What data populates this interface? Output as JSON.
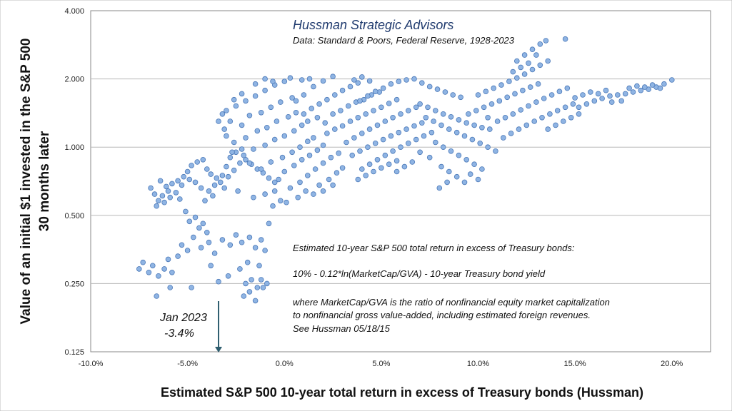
{
  "chart_data": {
    "type": "scatter",
    "title": "Hussman Strategic Advisors",
    "subtitle": "Data: Standard & Poors, Federal Reserve, 1928-2023",
    "xlabel": "Estimated S&P 500 10-year total return in excess of Treasury bonds (Hussman)",
    "ylabel_line1": "Value of an initial $1 invested in the S&P 500",
    "ylabel_line2": "30 months later",
    "xlim": [
      -10,
      22
    ],
    "ylim": [
      0.125,
      4
    ],
    "y_scale": "log2",
    "grid": "horizontal",
    "x_ticks": [
      {
        "value": -10,
        "label": "-10.0%"
      },
      {
        "value": -5,
        "label": "-5.0%"
      },
      {
        "value": 0,
        "label": "0.0%"
      },
      {
        "value": 5,
        "label": "5.0%"
      },
      {
        "value": 10,
        "label": "10.0%"
      },
      {
        "value": 15,
        "label": "15.0%"
      },
      {
        "value": 20,
        "label": "20.0%"
      }
    ],
    "y_ticks": [
      {
        "value": 0.125,
        "label": "0.125"
      },
      {
        "value": 0.25,
        "label": "0.250"
      },
      {
        "value": 0.5,
        "label": "0.500"
      },
      {
        "value": 1,
        "label": "1.000"
      },
      {
        "value": 2,
        "label": "2.000"
      },
      {
        "value": 4,
        "label": "4.000"
      }
    ],
    "notes": [
      "Estimated 10-year S&P 500 total return in excess of Treasury bonds:",
      "10% - 0.12*ln(MarketCap/GVA) - 10-year Treasury bond yield",
      "where MarketCap/GVA is the ratio of nonfinancial equity market capitalization",
      "to nonfinancial gross value-added, including estimated foreign revenues.",
      "See Hussman 05/18/15"
    ],
    "annotation": {
      "line1": "Jan 2023",
      "line2": "-3.4%",
      "x": -3.4
    },
    "marker_color": "#8fb4e3",
    "marker_edge": "#4a78b8",
    "arrow_color": "#2e5d6e",
    "points": [
      [
        -6.9,
        0.66
      ],
      [
        -6.7,
        0.62
      ],
      [
        -6.5,
        0.58
      ],
      [
        -6.3,
        0.61
      ],
      [
        -6.0,
        0.64
      ],
      [
        -5.8,
        0.69
      ],
      [
        -5.5,
        0.71
      ],
      [
        -5.2,
        0.74
      ],
      [
        -5.0,
        0.78
      ],
      [
        -4.8,
        0.83
      ],
      [
        -4.5,
        0.86
      ],
      [
        -4.2,
        0.88
      ],
      [
        -4.0,
        0.8
      ],
      [
        -3.8,
        0.76
      ],
      [
        -3.5,
        0.73
      ],
      [
        -3.2,
        0.75
      ],
      [
        -3.0,
        0.82
      ],
      [
        -2.8,
        0.9
      ],
      [
        -2.5,
        0.95
      ],
      [
        -2.2,
        0.98
      ],
      [
        -6.6,
        0.55
      ],
      [
        -6.2,
        0.57
      ],
      [
        -5.9,
        0.6
      ],
      [
        -5.6,
        0.63
      ],
      [
        -5.3,
        0.68
      ],
      [
        -4.9,
        0.72
      ],
      [
        -4.6,
        0.7
      ],
      [
        -4.3,
        0.66
      ],
      [
        -3.9,
        0.64
      ],
      [
        -3.6,
        0.68
      ],
      [
        -3.3,
        0.7
      ],
      [
        -2.9,
        0.74
      ],
      [
        -2.6,
        0.79
      ],
      [
        -2.3,
        0.85
      ],
      [
        -2.0,
        0.88
      ],
      [
        -1.7,
        0.84
      ],
      [
        -1.4,
        0.8
      ],
      [
        -1.1,
        0.77
      ],
      [
        -0.8,
        0.73
      ],
      [
        -0.5,
        0.7
      ],
      [
        -5.1,
        0.52
      ],
      [
        -4.9,
        0.47
      ],
      [
        -4.6,
        0.49
      ],
      [
        -4.4,
        0.44
      ],
      [
        -4.2,
        0.46
      ],
      [
        -4.0,
        0.42
      ],
      [
        -4.7,
        0.4
      ],
      [
        -5.3,
        0.37
      ],
      [
        -5.0,
        0.35
      ],
      [
        -4.3,
        0.36
      ],
      [
        -3.9,
        0.38
      ],
      [
        -3.6,
        0.34
      ],
      [
        -3.2,
        0.39
      ],
      [
        -2.8,
        0.37
      ],
      [
        -2.5,
        0.41
      ],
      [
        -2.2,
        0.38
      ],
      [
        -1.8,
        0.4
      ],
      [
        -1.5,
        0.36
      ],
      [
        -1.2,
        0.39
      ],
      [
        -1.0,
        0.35
      ],
      [
        -7.5,
        0.29
      ],
      [
        -7.3,
        0.31
      ],
      [
        -7.0,
        0.28
      ],
      [
        -6.8,
        0.3
      ],
      [
        -6.5,
        0.27
      ],
      [
        -6.2,
        0.29
      ],
      [
        -6.0,
        0.32
      ],
      [
        -5.8,
        0.28
      ],
      [
        -5.5,
        0.33
      ],
      [
        -6.6,
        0.22
      ],
      [
        -5.9,
        0.24
      ],
      [
        -4.8,
        0.24
      ],
      [
        -3.8,
        0.3
      ],
      [
        -2.9,
        0.27
      ],
      [
        -2.3,
        0.29
      ],
      [
        -2.0,
        0.25
      ],
      [
        -1.7,
        0.26
      ],
      [
        -1.4,
        0.24
      ],
      [
        -1.2,
        0.26
      ],
      [
        -0.9,
        0.25
      ],
      [
        -3.4,
        0.255
      ],
      [
        -2.1,
        0.22
      ],
      [
        -1.8,
        0.23
      ],
      [
        -1.5,
        0.21
      ],
      [
        -1.1,
        0.24
      ],
      [
        -1.9,
        0.31
      ],
      [
        -1.3,
        0.3
      ],
      [
        -0.8,
        0.46
      ],
      [
        -0.2,
        0.58
      ],
      [
        -0.6,
        0.55
      ],
      [
        0.1,
        0.57
      ],
      [
        -1.0,
        0.62
      ],
      [
        -1.6,
        0.6
      ],
      [
        -2.4,
        0.64
      ],
      [
        -3.1,
        0.66
      ],
      [
        -3.7,
        0.61
      ],
      [
        -4.1,
        0.58
      ],
      [
        -5.4,
        0.59
      ],
      [
        -6.1,
        0.67
      ],
      [
        -6.4,
        0.71
      ],
      [
        -3.0,
        1.45
      ],
      [
        -2.5,
        1.52
      ],
      [
        -2.0,
        1.6
      ],
      [
        -1.5,
        1.68
      ],
      [
        -1.0,
        1.78
      ],
      [
        -0.5,
        1.88
      ],
      [
        0.0,
        1.95
      ],
      [
        0.3,
        2.02
      ],
      [
        -2.8,
        1.3
      ],
      [
        -2.2,
        1.25
      ],
      [
        -1.8,
        1.38
      ],
      [
        -1.2,
        1.42
      ],
      [
        -0.7,
        1.5
      ],
      [
        -0.2,
        1.58
      ],
      [
        0.4,
        1.65
      ],
      [
        -3.0,
        1.12
      ],
      [
        -2.6,
        1.05
      ],
      [
        -2.0,
        1.1
      ],
      [
        -1.4,
        1.18
      ],
      [
        -0.9,
        1.22
      ],
      [
        -0.4,
        1.3
      ],
      [
        0.2,
        1.36
      ],
      [
        0.6,
        1.42
      ],
      [
        -2.7,
        0.95
      ],
      [
        -2.1,
        0.92
      ],
      [
        -1.6,
        0.98
      ],
      [
        -1.0,
        1.02
      ],
      [
        -0.5,
        1.08
      ],
      [
        0.0,
        1.12
      ],
      [
        0.5,
        1.18
      ],
      [
        0.9,
        1.25
      ],
      [
        -1.8,
        0.85
      ],
      [
        -1.2,
        0.8
      ],
      [
        -0.7,
        0.86
      ],
      [
        -0.1,
        0.9
      ],
      [
        0.4,
        0.95
      ],
      [
        0.8,
        1.0
      ],
      [
        1.2,
        1.06
      ],
      [
        1.5,
        1.1
      ],
      [
        -0.3,
        0.72
      ],
      [
        0.0,
        0.78
      ],
      [
        0.5,
        0.83
      ],
      [
        0.9,
        0.88
      ],
      [
        1.3,
        0.92
      ],
      [
        1.7,
        0.97
      ],
      [
        2.0,
        1.02
      ],
      [
        0.3,
        0.66
      ],
      [
        0.8,
        0.7
      ],
      [
        1.2,
        0.75
      ],
      [
        1.6,
        0.8
      ],
      [
        2.0,
        0.85
      ],
      [
        2.4,
        0.9
      ],
      [
        2.8,
        0.94
      ],
      [
        1.8,
        0.68
      ],
      [
        2.3,
        0.72
      ],
      [
        2.7,
        0.77
      ],
      [
        3.0,
        0.81
      ],
      [
        1.0,
        1.4
      ],
      [
        1.4,
        1.48
      ],
      [
        1.8,
        1.55
      ],
      [
        2.2,
        1.62
      ],
      [
        2.6,
        1.7
      ],
      [
        3.0,
        1.78
      ],
      [
        3.4,
        1.85
      ],
      [
        3.8,
        1.92
      ],
      [
        2.0,
        1.96
      ],
      [
        2.5,
        2.05
      ],
      [
        1.5,
        1.85
      ],
      [
        1.0,
        1.7
      ],
      [
        0.6,
        1.6
      ],
      [
        1.2,
        1.3
      ],
      [
        1.7,
        1.35
      ],
      [
        2.1,
        1.28
      ],
      [
        2.5,
        1.4
      ],
      [
        2.9,
        1.45
      ],
      [
        3.3,
        1.52
      ],
      [
        3.7,
        1.58
      ],
      [
        4.1,
        1.62
      ],
      [
        4.5,
        1.7
      ],
      [
        4.9,
        1.75
      ],
      [
        2.2,
        1.15
      ],
      [
        2.6,
        1.2
      ],
      [
        3.0,
        1.24
      ],
      [
        3.4,
        1.3
      ],
      [
        3.8,
        1.35
      ],
      [
        4.2,
        1.4
      ],
      [
        4.6,
        1.45
      ],
      [
        5.0,
        1.5
      ],
      [
        5.4,
        1.56
      ],
      [
        5.8,
        1.62
      ],
      [
        3.2,
        1.05
      ],
      [
        3.6,
        1.1
      ],
      [
        4.0,
        1.15
      ],
      [
        4.4,
        1.2
      ],
      [
        4.8,
        1.25
      ],
      [
        5.2,
        1.3
      ],
      [
        5.6,
        1.35
      ],
      [
        6.0,
        1.4
      ],
      [
        6.4,
        1.45
      ],
      [
        6.8,
        1.5
      ],
      [
        3.5,
        0.92
      ],
      [
        3.9,
        0.96
      ],
      [
        4.3,
        1.0
      ],
      [
        4.7,
        1.04
      ],
      [
        5.1,
        1.08
      ],
      [
        5.5,
        1.12
      ],
      [
        5.9,
        1.16
      ],
      [
        6.3,
        1.2
      ],
      [
        6.7,
        1.24
      ],
      [
        7.1,
        1.28
      ],
      [
        4.0,
        0.8
      ],
      [
        4.4,
        0.84
      ],
      [
        4.8,
        0.88
      ],
      [
        5.2,
        0.92
      ],
      [
        5.6,
        0.96
      ],
      [
        6.0,
        1.0
      ],
      [
        6.4,
        1.04
      ],
      [
        6.8,
        1.08
      ],
      [
        7.2,
        1.12
      ],
      [
        7.6,
        1.16
      ],
      [
        3.8,
        0.72
      ],
      [
        4.2,
        0.75
      ],
      [
        4.6,
        0.78
      ],
      [
        5.0,
        0.81
      ],
      [
        5.4,
        0.84
      ],
      [
        5.8,
        0.87
      ],
      [
        3.9,
        1.6
      ],
      [
        4.3,
        1.68
      ],
      [
        4.7,
        1.76
      ],
      [
        5.1,
        1.82
      ],
      [
        5.5,
        1.9
      ],
      [
        5.9,
        1.95
      ],
      [
        6.3,
        1.98
      ],
      [
        6.7,
        2.0
      ],
      [
        7.1,
        1.92
      ],
      [
        7.5,
        1.85
      ],
      [
        7.9,
        1.8
      ],
      [
        8.3,
        1.75
      ],
      [
        8.7,
        1.7
      ],
      [
        9.1,
        1.66
      ],
      [
        7.0,
        1.55
      ],
      [
        7.4,
        1.5
      ],
      [
        7.8,
        1.45
      ],
      [
        8.2,
        1.4
      ],
      [
        8.6,
        1.36
      ],
      [
        9.0,
        1.32
      ],
      [
        9.4,
        1.28
      ],
      [
        9.8,
        1.25
      ],
      [
        10.2,
        1.22
      ],
      [
        10.6,
        1.2
      ],
      [
        7.3,
        1.35
      ],
      [
        7.7,
        1.3
      ],
      [
        8.1,
        1.25
      ],
      [
        8.5,
        1.2
      ],
      [
        8.9,
        1.16
      ],
      [
        9.3,
        1.12
      ],
      [
        9.7,
        1.08
      ],
      [
        10.1,
        1.04
      ],
      [
        10.5,
        1.0
      ],
      [
        10.9,
        0.96
      ],
      [
        7.8,
        1.05
      ],
      [
        8.2,
        1.0
      ],
      [
        8.6,
        0.96
      ],
      [
        9.0,
        0.92
      ],
      [
        9.4,
        0.88
      ],
      [
        9.8,
        0.84
      ],
      [
        10.2,
        0.8
      ],
      [
        8.5,
        0.78
      ],
      [
        8.9,
        0.74
      ],
      [
        9.3,
        0.7
      ],
      [
        8.1,
        0.82
      ],
      [
        7.5,
        0.9
      ],
      [
        7.0,
        0.95
      ],
      [
        6.6,
        0.86
      ],
      [
        6.2,
        0.82
      ],
      [
        5.8,
        0.78
      ],
      [
        8.0,
        0.66
      ],
      [
        8.4,
        0.7
      ],
      [
        9.6,
        0.76
      ],
      [
        10.0,
        0.72
      ],
      [
        9.5,
        1.4
      ],
      [
        9.9,
        1.45
      ],
      [
        10.3,
        1.5
      ],
      [
        10.7,
        1.55
      ],
      [
        11.1,
        1.6
      ],
      [
        11.5,
        1.66
      ],
      [
        11.9,
        1.72
      ],
      [
        12.3,
        1.78
      ],
      [
        12.7,
        1.84
      ],
      [
        13.1,
        1.9
      ],
      [
        10.0,
        1.7
      ],
      [
        10.4,
        1.76
      ],
      [
        10.8,
        1.82
      ],
      [
        11.2,
        1.88
      ],
      [
        11.6,
        1.95
      ],
      [
        12.0,
        2.02
      ],
      [
        12.4,
        2.1
      ],
      [
        12.8,
        2.2
      ],
      [
        13.2,
        2.3
      ],
      [
        13.6,
        2.4
      ],
      [
        11.0,
        1.3
      ],
      [
        11.4,
        1.35
      ],
      [
        11.8,
        1.4
      ],
      [
        12.2,
        1.46
      ],
      [
        12.6,
        1.52
      ],
      [
        13.0,
        1.58
      ],
      [
        13.4,
        1.64
      ],
      [
        13.8,
        1.7
      ],
      [
        14.2,
        1.76
      ],
      [
        14.6,
        1.82
      ],
      [
        11.3,
        1.1
      ],
      [
        11.7,
        1.15
      ],
      [
        12.1,
        1.2
      ],
      [
        12.5,
        1.25
      ],
      [
        12.9,
        1.3
      ],
      [
        13.3,
        1.35
      ],
      [
        13.7,
        1.4
      ],
      [
        14.1,
        1.45
      ],
      [
        14.5,
        1.5
      ],
      [
        14.9,
        1.55
      ],
      [
        12.0,
        2.4
      ],
      [
        12.4,
        2.55
      ],
      [
        12.8,
        2.7
      ],
      [
        13.2,
        2.85
      ],
      [
        13.5,
        2.95
      ],
      [
        12.2,
        2.25
      ],
      [
        11.8,
        2.15
      ],
      [
        14.5,
        3.0
      ],
      [
        13.0,
        2.55
      ],
      [
        12.6,
        2.35
      ],
      [
        15.0,
        1.65
      ],
      [
        15.4,
        1.7
      ],
      [
        15.8,
        1.75
      ],
      [
        16.2,
        1.72
      ],
      [
        16.6,
        1.78
      ],
      [
        15.2,
        1.5
      ],
      [
        15.6,
        1.55
      ],
      [
        16.0,
        1.6
      ],
      [
        16.4,
        1.64
      ],
      [
        16.8,
        1.68
      ],
      [
        14.0,
        1.25
      ],
      [
        14.4,
        1.3
      ],
      [
        14.8,
        1.35
      ],
      [
        15.2,
        1.4
      ],
      [
        13.6,
        1.2
      ],
      [
        17.2,
        1.7
      ],
      [
        17.6,
        1.72
      ],
      [
        18.0,
        1.75
      ],
      [
        18.4,
        1.78
      ],
      [
        18.8,
        1.8
      ],
      [
        19.2,
        1.84
      ],
      [
        19.6,
        1.9
      ],
      [
        20.0,
        1.98
      ],
      [
        17.8,
        1.82
      ],
      [
        18.2,
        1.86
      ],
      [
        18.6,
        1.84
      ],
      [
        19.0,
        1.88
      ],
      [
        19.4,
        1.82
      ],
      [
        17.4,
        1.6
      ],
      [
        16.9,
        1.58
      ],
      [
        1.5,
        0.62
      ],
      [
        2.0,
        0.64
      ],
      [
        2.5,
        0.68
      ],
      [
        -1.5,
        1.9
      ],
      [
        -1.0,
        2.0
      ],
      [
        -0.6,
        1.95
      ],
      [
        0.9,
        1.98
      ],
      [
        1.3,
        2.0
      ],
      [
        3.6,
        1.98
      ],
      [
        4.0,
        2.04
      ],
      [
        4.4,
        1.96
      ],
      [
        -2.2,
        1.72
      ],
      [
        -2.6,
        1.62
      ],
      [
        -3.2,
        1.4
      ],
      [
        -3.4,
        1.3
      ],
      [
        -3.1,
        1.2
      ],
      [
        0.7,
        0.6
      ],
      [
        1.1,
        0.64
      ],
      [
        -0.5,
        0.64
      ],
      [
        10.5,
        1.35
      ]
    ]
  }
}
